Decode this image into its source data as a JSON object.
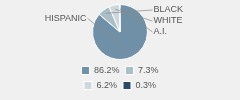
{
  "chart_data": {
    "type": "pie",
    "categories": [
      "HISPANIC",
      "BLACK",
      "WHITE",
      "A.I."
    ],
    "values": [
      86.2,
      7.3,
      6.2,
      0.3
    ],
    "value_labels": [
      "86.2%",
      "7.3%",
      "6.2%",
      "0.3%"
    ],
    "colors": [
      "#7090a8",
      "#a8bfc8",
      "#ccd8de",
      "#2a4a68"
    ],
    "legend": "bottom"
  }
}
